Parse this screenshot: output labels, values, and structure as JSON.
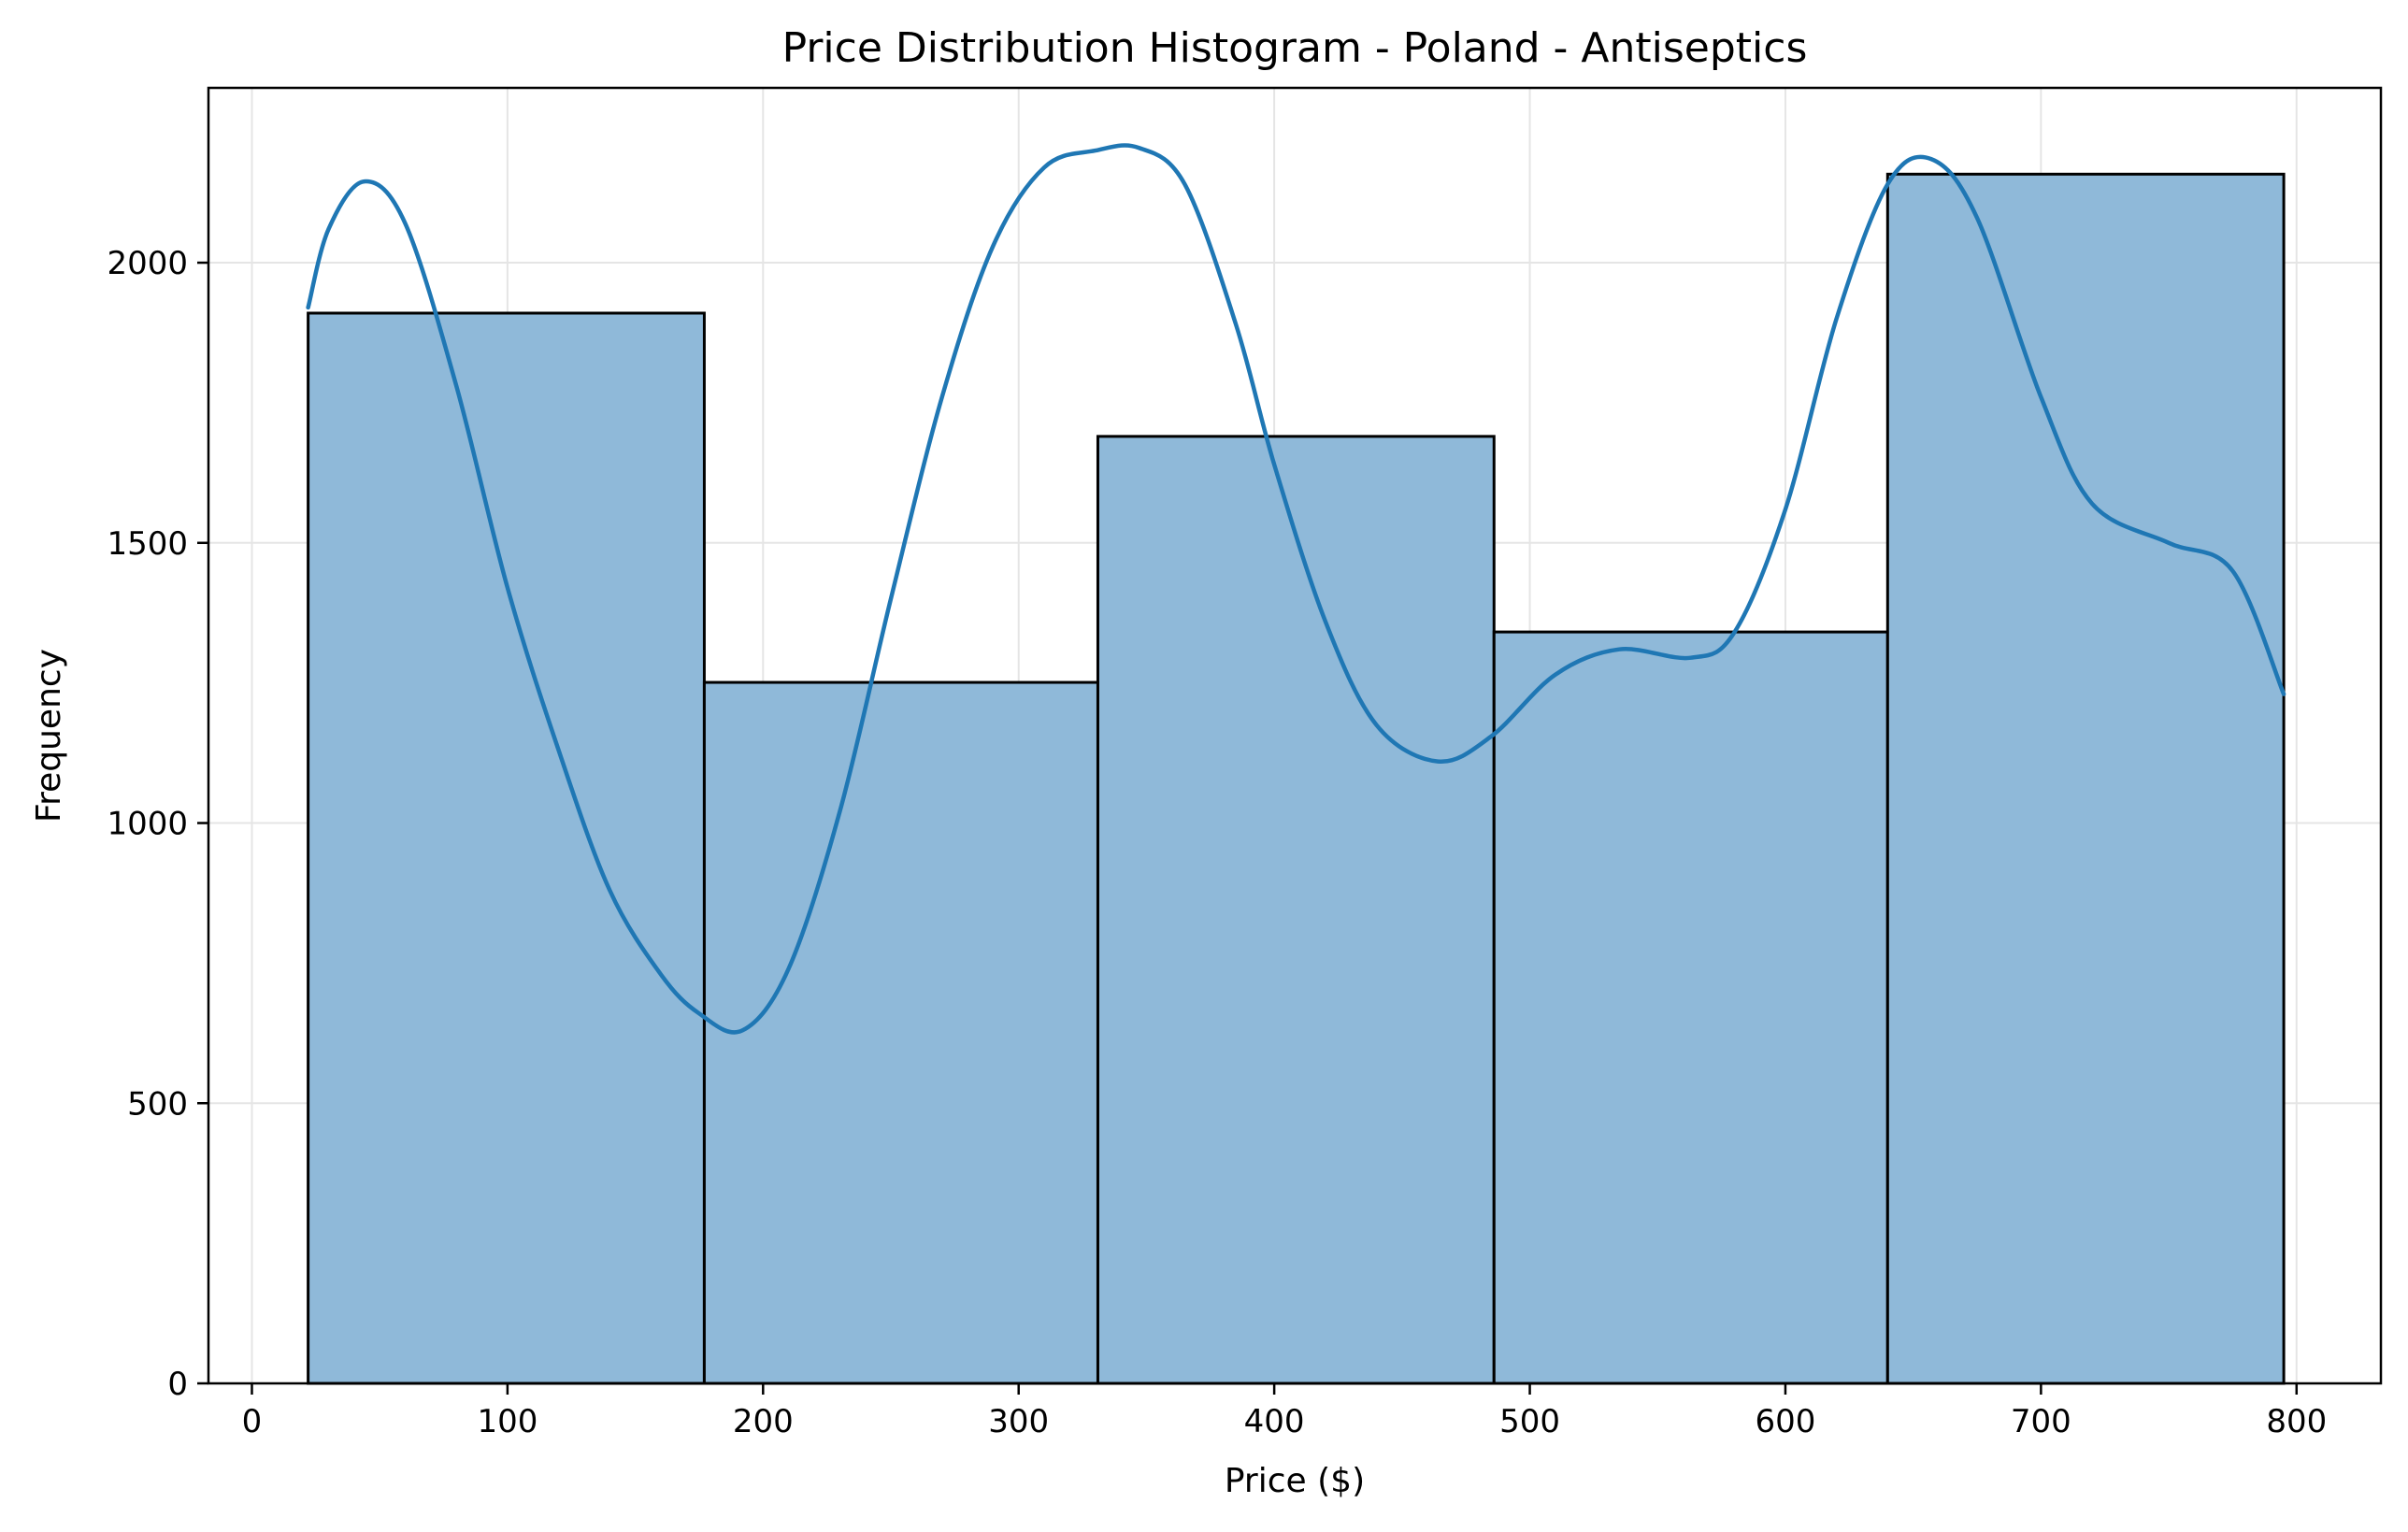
{
  "chart_data": {
    "type": "histogram",
    "title": "Price Distribution Histogram - Poland - Antiseptics",
    "xlabel": "Price ($)",
    "ylabel": "Frequency",
    "xlim": [
      -17,
      833
    ],
    "ylim": [
      0,
      2312
    ],
    "x_ticks": [
      0,
      100,
      200,
      300,
      400,
      500,
      600,
      700,
      800
    ],
    "y_ticks": [
      0,
      500,
      1000,
      1500,
      2000
    ],
    "grid": true,
    "bins": [
      {
        "x0": 22,
        "x1": 177,
        "count": 1910
      },
      {
        "x0": 177,
        "x1": 331,
        "count": 1251
      },
      {
        "x0": 331,
        "x1": 486,
        "count": 1690
      },
      {
        "x0": 486,
        "x1": 640,
        "count": 1341
      },
      {
        "x0": 640,
        "x1": 795,
        "count": 2158
      }
    ],
    "kde": {
      "x": [
        22,
        30,
        44,
        60,
        80,
        100,
        120,
        140,
        160,
        175,
        192,
        210,
        230,
        250,
        270,
        290,
        310,
        330,
        347,
        365,
        385,
        400,
        420,
        440,
        464,
        485,
        510,
        535,
        563,
        580,
        600,
        620,
        640,
        657,
        675,
        700,
        720,
        750,
        775,
        795
      ],
      "y": [
        1920,
        2060,
        2145,
        2070,
        1780,
        1420,
        1130,
        880,
        730,
        660,
        630,
        740,
        1020,
        1400,
        1760,
        2030,
        2170,
        2200,
        2205,
        2140,
        1890,
        1640,
        1360,
        1175,
        1110,
        1155,
        1265,
        1310,
        1295,
        1340,
        1560,
        1900,
        2140,
        2185,
        2080,
        1760,
        1570,
        1500,
        1450,
        1230
      ]
    },
    "colors": {
      "bar_fill": "#8fb9d9",
      "bar_edge": "#000000",
      "kde_line": "#1f77b4",
      "grid": "#e5e5e5"
    }
  }
}
